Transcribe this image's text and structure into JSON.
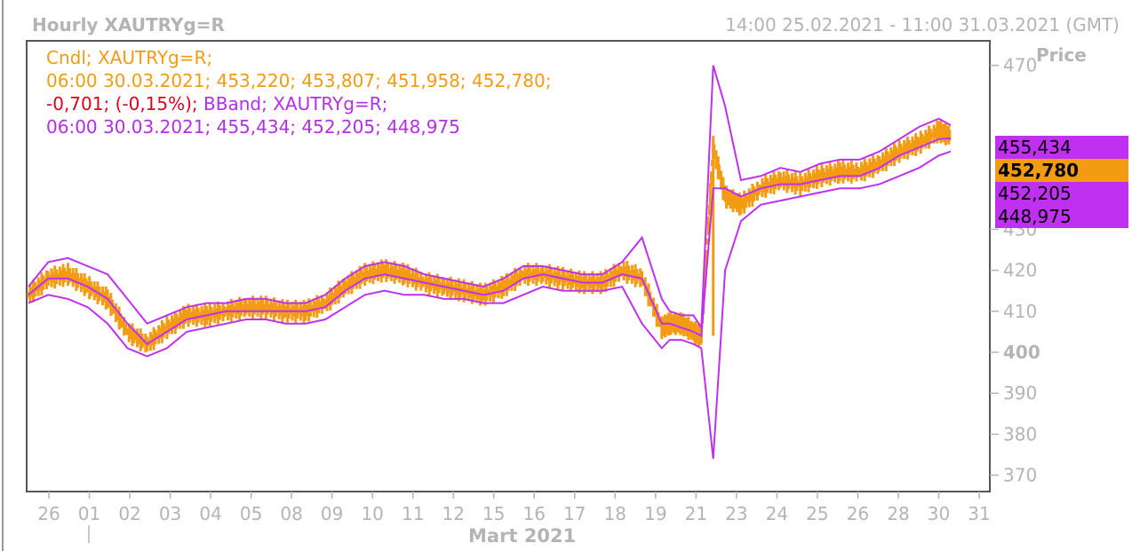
{
  "header": {
    "title": "Hourly XAUTRYg=R",
    "range": "14:00 25.02.2021 - 11:00 31.03.2021 (GMT)"
  },
  "axis": {
    "price_label": "Price",
    "month_label": "Mart 2021"
  },
  "legend": {
    "line1": "Cndl; XAUTRYg=R;",
    "line2": "06:00 30.03.2021; 453,220; 453,807; 451,958; 452,780;",
    "line3_change": "-0,701; (-0,15%);",
    "line3_band": " BBand; XAUTRYg=R;",
    "line4": "06:00 30.03.2021; 455,434; 452,205; 448,975"
  },
  "tags": {
    "upper": "455,434",
    "close": "452,780",
    "middle": "452,205",
    "lower": "448,975"
  },
  "colors": {
    "candle": "#f39b12",
    "band": "#c030f0",
    "axis_text": "#b4b4b4",
    "change": "#e0001a",
    "tag_band_bg": "#c030f0",
    "tag_close_bg": "#f39b12"
  },
  "chart_data": {
    "type": "line",
    "title": "Hourly XAUTRYg=R",
    "ylabel": "Price",
    "xlabel": "Mart 2021",
    "ylim": [
      366,
      476
    ],
    "yticks": [
      370,
      380,
      390,
      400,
      410,
      420,
      430,
      470
    ],
    "ytick_bold": 400,
    "xticks": [
      "26",
      "01",
      "02",
      "03",
      "04",
      "05",
      "08",
      "09",
      "10",
      "11",
      "12",
      "15",
      "16",
      "17",
      "18",
      "19",
      "21",
      "23",
      "24",
      "25",
      "26",
      "28",
      "30",
      "31"
    ],
    "x": [
      0,
      0.5,
      1,
      1.5,
      2,
      2.5,
      3,
      3.5,
      4,
      4.5,
      5,
      5.5,
      6,
      6.5,
      7,
      7.5,
      8,
      8.5,
      9,
      9.5,
      10,
      10.5,
      11,
      11.5,
      12,
      12.5,
      13,
      13.5,
      14,
      14.5,
      15,
      15.5,
      16,
      16.2,
      16.5,
      16.8,
      17,
      17.3,
      17.6,
      18,
      18.5,
      19,
      19.5,
      20,
      20.5,
      21,
      21.5,
      22,
      22.5,
      23,
      23.3
    ],
    "series": [
      {
        "name": "Cndl",
        "values": [
          414,
          418,
          419,
          416,
          413,
          405,
          402,
          406,
          409,
          409,
          410,
          411,
          411,
          410,
          410,
          412,
          416,
          419,
          420,
          419,
          417,
          416,
          415,
          414,
          416,
          419,
          419,
          418,
          417,
          417,
          420,
          418,
          406,
          407,
          407,
          405,
          404,
          450,
          438,
          436,
          440,
          442,
          441,
          443,
          444,
          444,
          446,
          449,
          451,
          454,
          452.8
        ]
      },
      {
        "name": "BBand upper",
        "values": [
          416,
          422,
          423,
          421,
          419,
          413,
          407,
          409,
          411,
          412,
          412,
          413,
          413,
          412,
          412,
          414,
          418,
          421,
          422,
          421,
          419,
          418,
          417,
          416,
          418,
          421,
          421,
          420,
          419,
          419,
          422,
          428,
          413,
          410,
          409,
          409,
          406,
          470,
          460,
          442,
          443,
          445,
          444,
          446,
          447,
          447,
          449,
          452,
          455,
          457,
          455.4
        ]
      },
      {
        "name": "BBand middle",
        "values": [
          414,
          418,
          418,
          416,
          413,
          407,
          402,
          405,
          408,
          409,
          410,
          410,
          410,
          410,
          410,
          411,
          415,
          418,
          419,
          418,
          417,
          416,
          415,
          414,
          415,
          418,
          419,
          418,
          417,
          417,
          419,
          418,
          407,
          407,
          406,
          405,
          404,
          440,
          440,
          438,
          440,
          441,
          441,
          442,
          443,
          443,
          445,
          448,
          450,
          452,
          452.2
        ]
      },
      {
        "name": "BBand lower",
        "values": [
          412,
          414,
          413,
          411,
          407,
          401,
          399,
          401,
          405,
          406,
          407,
          408,
          408,
          407,
          407,
          408,
          411,
          414,
          415,
          414,
          414,
          413,
          413,
          412,
          412,
          414,
          416,
          415,
          415,
          415,
          416,
          407,
          401,
          403,
          403,
          402,
          401,
          374,
          420,
          432,
          436,
          437,
          438,
          439,
          440,
          440,
          441,
          443,
          445,
          448,
          449
        ]
      }
    ]
  }
}
